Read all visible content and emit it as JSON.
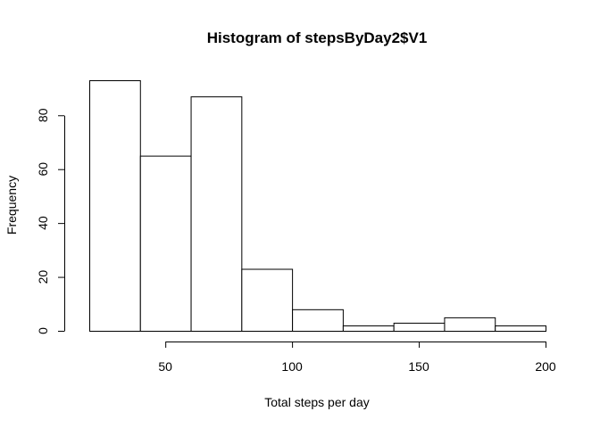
{
  "chart_data": {
    "type": "bar",
    "subtype": "histogram",
    "title": "Histogram of stepsByDay2$V1",
    "xlabel": "Total steps per day",
    "ylabel": "Frequency",
    "bins": [
      {
        "start": 20,
        "end": 40,
        "count": 93
      },
      {
        "start": 40,
        "end": 60,
        "count": 65
      },
      {
        "start": 60,
        "end": 80,
        "count": 87
      },
      {
        "start": 80,
        "end": 100,
        "count": 23
      },
      {
        "start": 100,
        "end": 120,
        "count": 8
      },
      {
        "start": 120,
        "end": 140,
        "count": 2
      },
      {
        "start": 140,
        "end": 160,
        "count": 3
      },
      {
        "start": 160,
        "end": 180,
        "count": 5
      },
      {
        "start": 180,
        "end": 200,
        "count": 2
      }
    ],
    "xticks": [
      50,
      100,
      150,
      200
    ],
    "yticks": [
      0,
      20,
      40,
      60,
      80
    ],
    "xlim": [
      20,
      200
    ],
    "ylim": [
      0,
      93
    ],
    "grid": false,
    "bar_fill": "#ffffff",
    "bar_stroke": "#000000"
  }
}
